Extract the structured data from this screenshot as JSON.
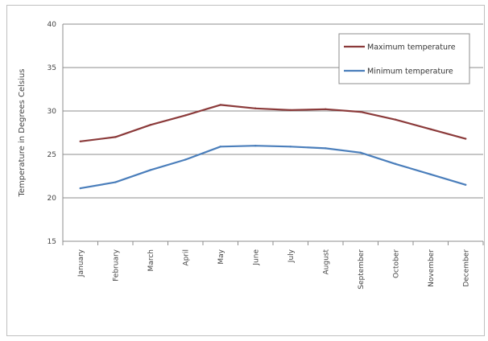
{
  "chart_data": {
    "type": "line",
    "title": "",
    "xlabel": "",
    "ylabel": "Temperature in Degrees Celsius",
    "categories": [
      "January",
      "February",
      "March",
      "April",
      "May",
      "June",
      "July",
      "August",
      "September",
      "October",
      "November",
      "December"
    ],
    "series": [
      {
        "name": "Maximum temperature",
        "color": "#8b3a3a",
        "values": [
          26.5,
          27.0,
          28.4,
          29.5,
          30.7,
          30.3,
          30.1,
          30.2,
          29.9,
          29.0,
          27.9,
          26.8
        ]
      },
      {
        "name": "Minimum temperature",
        "color": "#4a7ebb",
        "values": [
          21.1,
          21.8,
          23.2,
          24.4,
          25.9,
          26.0,
          25.9,
          25.7,
          25.2,
          23.9,
          22.7,
          21.5
        ]
      }
    ],
    "ylim": [
      15,
      40
    ],
    "yticks": [
      15,
      20,
      25,
      30,
      35,
      40
    ],
    "grid": true,
    "legend_position": "top-right"
  }
}
